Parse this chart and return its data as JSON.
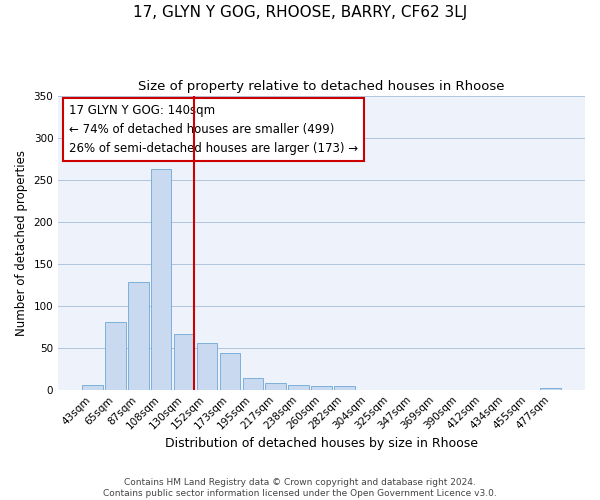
{
  "title": "17, GLYN Y GOG, RHOOSE, BARRY, CF62 3LJ",
  "subtitle": "Size of property relative to detached houses in Rhoose",
  "xlabel": "Distribution of detached houses by size in Rhoose",
  "ylabel": "Number of detached properties",
  "bar_labels": [
    "43sqm",
    "65sqm",
    "87sqm",
    "108sqm",
    "130sqm",
    "152sqm",
    "173sqm",
    "195sqm",
    "217sqm",
    "238sqm",
    "260sqm",
    "282sqm",
    "304sqm",
    "325sqm",
    "347sqm",
    "369sqm",
    "390sqm",
    "412sqm",
    "434sqm",
    "455sqm",
    "477sqm"
  ],
  "bar_values": [
    6,
    81,
    128,
    263,
    66,
    56,
    44,
    14,
    8,
    6,
    4,
    4,
    0,
    0,
    0,
    0,
    0,
    0,
    0,
    0,
    2
  ],
  "bar_color": "#c8d9f0",
  "bar_edgecolor": "#6fa8d5",
  "vline_index": 4,
  "vline_color": "#cc0000",
  "annotation_text": "17 GLYN Y GOG: 140sqm\n← 74% of detached houses are smaller (499)\n26% of semi-detached houses are larger (173) →",
  "annotation_box_color": "#ffffff",
  "annotation_box_edgecolor": "#cc0000",
  "ylim": [
    0,
    350
  ],
  "yticks": [
    0,
    50,
    100,
    150,
    200,
    250,
    300,
    350
  ],
  "grid_color": "#b0c4de",
  "background_color": "#eef3fb",
  "footer": "Contains HM Land Registry data © Crown copyright and database right 2024.\nContains public sector information licensed under the Open Government Licence v3.0.",
  "title_fontsize": 11,
  "subtitle_fontsize": 9.5,
  "xlabel_fontsize": 9,
  "ylabel_fontsize": 8.5,
  "tick_fontsize": 7.5
}
